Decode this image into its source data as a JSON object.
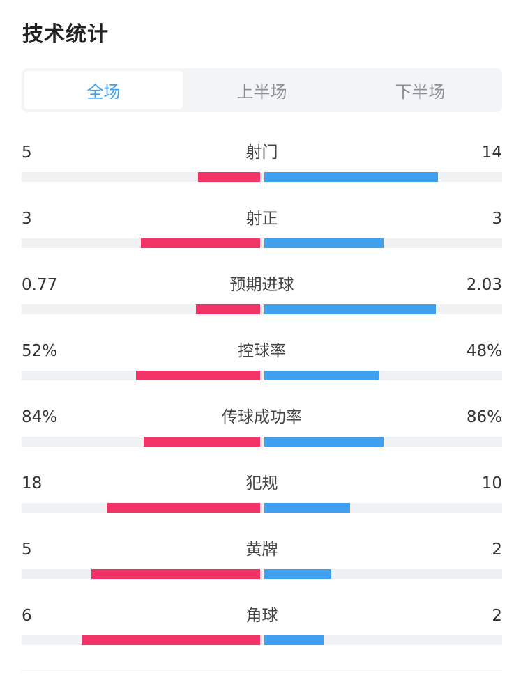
{
  "page": {
    "title": "技术统计"
  },
  "tabs": [
    {
      "label": "全场",
      "active": true
    },
    {
      "label": "上半场",
      "active": false
    },
    {
      "label": "下半场",
      "active": false
    }
  ],
  "colors": {
    "home": "#f23367",
    "away": "#3ea0ee",
    "track": "#f0f1f3"
  },
  "stats": [
    {
      "label": "射门",
      "home": "5",
      "away": "14",
      "home_fill": 0.26,
      "away_fill": 0.73
    },
    {
      "label": "射正",
      "home": "3",
      "away": "3",
      "home_fill": 0.5,
      "away_fill": 0.5
    },
    {
      "label": "预期进球",
      "home": "0.77",
      "away": "2.03",
      "home_fill": 0.27,
      "away_fill": 0.72
    },
    {
      "label": "控球率",
      "home": "52%",
      "away": "48%",
      "home_fill": 0.52,
      "away_fill": 0.48
    },
    {
      "label": "传球成功率",
      "home": "84%",
      "away": "86%",
      "home_fill": 0.49,
      "away_fill": 0.5
    },
    {
      "label": "犯规",
      "home": "18",
      "away": "10",
      "home_fill": 0.64,
      "away_fill": 0.36
    },
    {
      "label": "黄牌",
      "home": "5",
      "away": "2",
      "home_fill": 0.71,
      "away_fill": 0.28
    },
    {
      "label": "角球",
      "home": "6",
      "away": "2",
      "home_fill": 0.75,
      "away_fill": 0.25
    }
  ]
}
